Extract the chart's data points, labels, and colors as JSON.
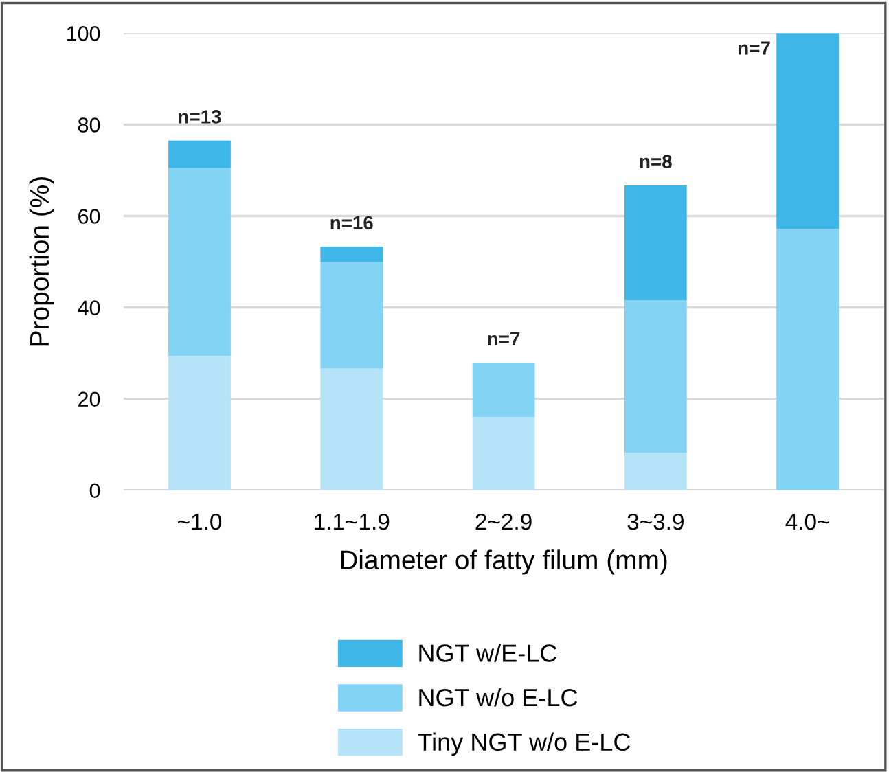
{
  "chart_data": {
    "type": "bar",
    "stacked": true,
    "xlabel": "Diameter of fatty filum (mm)",
    "ylabel": "Proportion (%)",
    "categories": [
      "~1.0",
      "1.1~1.9",
      "2~2.9",
      "3~3.9",
      "4.0~"
    ],
    "series": [
      {
        "name": "Tiny NGT w/o E-LC",
        "color": "#b5e3f7",
        "values": [
          29.4,
          26.6,
          16.0,
          8.2,
          0
        ]
      },
      {
        "name": "NGT w/o E-LC",
        "color": "#83d3f5",
        "values": [
          41.1,
          23.3,
          11.9,
          33.4,
          57.2
        ]
      },
      {
        "name": "NGT w/E-LC",
        "color": "#3fb6e8",
        "values": [
          6.0,
          3.4,
          0,
          25.1,
          42.8
        ]
      }
    ],
    "ylim": [
      0,
      100
    ],
    "yticks": [
      0,
      20,
      40,
      60,
      80,
      100
    ],
    "grid": "y",
    "legend": "bottom",
    "annotations": [
      {
        "text": "n=13",
        "x": "~1.0",
        "y": 76.5
      },
      {
        "text": "n=16",
        "x": "1.1~1.9",
        "y": 53.3
      },
      {
        "text": "n=7",
        "x": "2~2.9",
        "y": 27.9
      },
      {
        "text": "n=8",
        "x": "3~3.9",
        "y": 66.7
      },
      {
        "text": "n=7",
        "x": "4.0~",
        "y": 100
      }
    ]
  }
}
